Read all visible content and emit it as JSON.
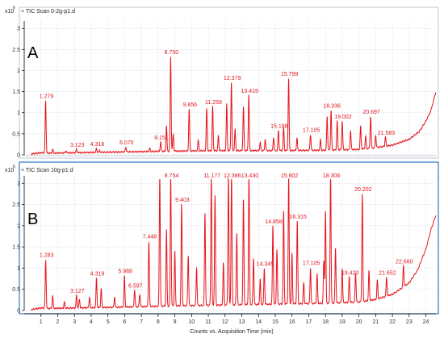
{
  "figure": {
    "xlabel": "Counts vs. Acquisition Time (min)",
    "x_ticks": [
      1,
      2,
      3,
      4,
      5,
      6,
      7,
      8,
      9,
      10,
      11,
      12,
      13,
      14,
      15,
      16,
      17,
      18,
      19,
      20,
      21,
      22,
      23,
      24
    ],
    "colors": {
      "trace": "#e8141c",
      "axis": "#000000",
      "grid": "#c8d2dc",
      "frame_active": "#2e79c4",
      "label": "#e0161f"
    }
  },
  "chart_data": [
    {
      "type": "line",
      "panel": "A",
      "scale_label": "x10",
      "scale_exp": "6",
      "scan_title": "+ TIC Scan 0-2g-p1.d",
      "xlim": [
        0,
        24.6
      ],
      "ylim": [
        0,
        3.1
      ],
      "y_ticks": [
        "0",
        "0.5",
        "1",
        "1.5",
        "2",
        "2.5",
        "3"
      ],
      "y_tick_values": [
        0,
        0.5,
        1,
        1.5,
        2,
        2.5,
        3
      ],
      "baseline": [
        [
          0.4,
          0.02
        ],
        [
          1.0,
          0.05
        ],
        [
          1.5,
          0.04
        ],
        [
          3,
          0.05
        ],
        [
          6,
          0.07
        ],
        [
          9,
          0.09
        ],
        [
          12,
          0.1
        ],
        [
          15,
          0.1
        ],
        [
          18,
          0.11
        ],
        [
          20,
          0.13
        ],
        [
          21,
          0.17
        ],
        [
          22,
          0.23
        ],
        [
          23,
          0.37
        ],
        [
          23.6,
          0.55
        ],
        [
          24.0,
          0.8
        ],
        [
          24.3,
          1.05
        ],
        [
          24.6,
          1.5
        ]
      ],
      "peaks": [
        {
          "rt": 1.279,
          "h": 1.25,
          "label": "1.279"
        },
        {
          "rt": 3.123,
          "h": 0.08,
          "label": "3.123"
        },
        {
          "rt": 4.318,
          "h": 0.09,
          "label": "4.318"
        },
        {
          "rt": 6.07,
          "h": 0.12,
          "label": "6.070"
        },
        {
          "rt": 8.151,
          "h": 0.22,
          "label": "8.151"
        },
        {
          "rt": 8.75,
          "h": 2.25,
          "label": "8.750"
        },
        {
          "rt": 9.856,
          "h": 1.0,
          "label": "9.856"
        },
        {
          "rt": 11.259,
          "h": 1.05,
          "label": "11.259"
        },
        {
          "rt": 12.379,
          "h": 1.62,
          "label": "12.379"
        },
        {
          "rt": 13.419,
          "h": 1.32,
          "label": "13.419"
        },
        {
          "rt": 15.188,
          "h": 0.48,
          "label": "15.188"
        },
        {
          "rt": 15.799,
          "h": 1.72,
          "label": "15.799"
        },
        {
          "rt": 17.105,
          "h": 0.38,
          "label": "17.105"
        },
        {
          "rt": 18.336,
          "h": 0.95,
          "label": "18.336"
        },
        {
          "rt": 19.002,
          "h": 0.68,
          "label": "19.002"
        },
        {
          "rt": 20.697,
          "h": 0.76,
          "label": "20.697"
        },
        {
          "rt": 21.583,
          "h": 0.22,
          "label": "21.583"
        }
      ],
      "minor_peaks": [
        {
          "rt": 1.7,
          "h": 0.1
        },
        {
          "rt": 2.5,
          "h": 0.05
        },
        {
          "rt": 4.5,
          "h": 0.05
        },
        {
          "rt": 7.5,
          "h": 0.08
        },
        {
          "rt": 8.5,
          "h": 0.6
        },
        {
          "rt": 8.9,
          "h": 0.4
        },
        {
          "rt": 10.4,
          "h": 0.25
        },
        {
          "rt": 10.9,
          "h": 1.0
        },
        {
          "rt": 11.6,
          "h": 0.35
        },
        {
          "rt": 12.1,
          "h": 1.1
        },
        {
          "rt": 12.6,
          "h": 0.5
        },
        {
          "rt": 13.1,
          "h": 1.05
        },
        {
          "rt": 14.1,
          "h": 0.2
        },
        {
          "rt": 14.4,
          "h": 0.28
        },
        {
          "rt": 14.9,
          "h": 0.32
        },
        {
          "rt": 15.5,
          "h": 0.55
        },
        {
          "rt": 16.3,
          "h": 0.3
        },
        {
          "rt": 17.7,
          "h": 0.25
        },
        {
          "rt": 18.1,
          "h": 0.8
        },
        {
          "rt": 18.7,
          "h": 0.7
        },
        {
          "rt": 19.5,
          "h": 0.45
        },
        {
          "rt": 20.1,
          "h": 0.55
        },
        {
          "rt": 20.4,
          "h": 0.3
        },
        {
          "rt": 21.0,
          "h": 0.3
        }
      ]
    },
    {
      "type": "line",
      "panel": "B",
      "scale_label": "x10",
      "scale_exp": "6",
      "scan_title": "+ TIC Scan 10g-p1.d",
      "xlim": [
        0,
        24.6
      ],
      "ylim": [
        0,
        3.1
      ],
      "y_ticks": [
        "0",
        "0.5",
        "1",
        "1.5",
        "2",
        "2.5",
        "3"
      ],
      "y_tick_values": [
        0,
        0.5,
        1,
        1.5,
        2,
        2.5,
        3
      ],
      "baseline": [
        [
          0.4,
          0.02
        ],
        [
          1.0,
          0.06
        ],
        [
          1.5,
          0.05
        ],
        [
          3,
          0.06
        ],
        [
          6,
          0.08
        ],
        [
          9,
          0.11
        ],
        [
          12,
          0.13
        ],
        [
          15,
          0.15
        ],
        [
          18,
          0.17
        ],
        [
          20,
          0.2
        ],
        [
          21,
          0.26
        ],
        [
          22,
          0.38
        ],
        [
          23,
          0.65
        ],
        [
          23.5,
          0.95
        ],
        [
          24.0,
          1.45
        ],
        [
          24.3,
          1.9
        ],
        [
          24.6,
          2.25
        ]
      ],
      "peaks": [
        {
          "rt": 1.283,
          "h": 1.15,
          "label": "1.283"
        },
        {
          "rt": 3.127,
          "h": 0.3,
          "label": "3.127"
        },
        {
          "rt": 4.319,
          "h": 0.7,
          "label": "4.319"
        },
        {
          "rt": 5.988,
          "h": 0.75,
          "label": "5.988"
        },
        {
          "rt": 6.597,
          "h": 0.4,
          "label": "6.597"
        },
        {
          "rt": 7.448,
          "h": 1.55,
          "label": "7.448"
        },
        {
          "rt": 8.754,
          "h": 3.1,
          "label": "8.754"
        },
        {
          "rt": 9.403,
          "h": 2.4,
          "label": "9.403"
        },
        {
          "rt": 11.177,
          "h": 3.1,
          "label": "11.177"
        },
        {
          "rt": 12.386,
          "h": 3.1,
          "label": "12.386"
        },
        {
          "rt": 13.43,
          "h": 3.1,
          "label": "13.430"
        },
        {
          "rt": 14.345,
          "h": 0.85,
          "label": "14.345"
        },
        {
          "rt": 14.858,
          "h": 1.85,
          "label": "14.858"
        },
        {
          "rt": 15.802,
          "h": 3.1,
          "label": "15.802"
        },
        {
          "rt": 16.315,
          "h": 1.95,
          "label": "16.315"
        },
        {
          "rt": 17.105,
          "h": 0.85,
          "label": "17.105"
        },
        {
          "rt": 18.306,
          "h": 3.1,
          "label": "18.306"
        },
        {
          "rt": 19.42,
          "h": 0.6,
          "label": "19.420"
        },
        {
          "rt": 20.202,
          "h": 2.55,
          "label": "20.202"
        },
        {
          "rt": 21.652,
          "h": 0.45,
          "label": "21.652"
        },
        {
          "rt": 22.66,
          "h": 0.5,
          "label": "22.660"
        }
      ],
      "minor_peaks": [
        {
          "rt": 1.7,
          "h": 0.3
        },
        {
          "rt": 2.4,
          "h": 0.15
        },
        {
          "rt": 3.3,
          "h": 0.2
        },
        {
          "rt": 3.9,
          "h": 0.25
        },
        {
          "rt": 4.6,
          "h": 0.45
        },
        {
          "rt": 5.4,
          "h": 0.25
        },
        {
          "rt": 6.9,
          "h": 0.3
        },
        {
          "rt": 8.1,
          "h": 3.1
        },
        {
          "rt": 8.5,
          "h": 1.8
        },
        {
          "rt": 9.0,
          "h": 1.3
        },
        {
          "rt": 9.8,
          "h": 1.2
        },
        {
          "rt": 10.3,
          "h": 0.9
        },
        {
          "rt": 10.8,
          "h": 2.2
        },
        {
          "rt": 11.4,
          "h": 2.6
        },
        {
          "rt": 11.9,
          "h": 1.0
        },
        {
          "rt": 12.2,
          "h": 3.1
        },
        {
          "rt": 12.7,
          "h": 1.7
        },
        {
          "rt": 13.1,
          "h": 2.5
        },
        {
          "rt": 13.7,
          "h": 1.1
        },
        {
          "rt": 14.1,
          "h": 0.6
        },
        {
          "rt": 15.1,
          "h": 1.3
        },
        {
          "rt": 15.5,
          "h": 2.2
        },
        {
          "rt": 16.0,
          "h": 1.2
        },
        {
          "rt": 16.7,
          "h": 0.5
        },
        {
          "rt": 17.5,
          "h": 0.7
        },
        {
          "rt": 17.9,
          "h": 1.0
        },
        {
          "rt": 18.0,
          "h": 2.2
        },
        {
          "rt": 18.6,
          "h": 1.3
        },
        {
          "rt": 19.0,
          "h": 0.8
        },
        {
          "rt": 19.8,
          "h": 0.7
        },
        {
          "rt": 20.6,
          "h": 0.7
        },
        {
          "rt": 21.1,
          "h": 0.45
        }
      ]
    }
  ]
}
